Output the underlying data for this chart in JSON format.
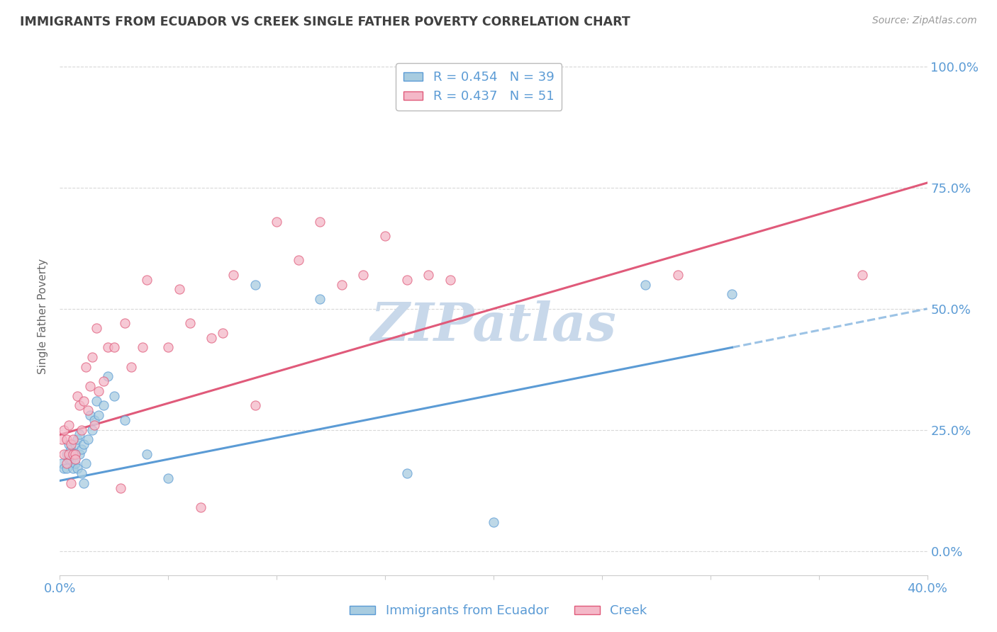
{
  "title": "IMMIGRANTS FROM ECUADOR VS CREEK SINGLE FATHER POVERTY CORRELATION CHART",
  "source": "Source: ZipAtlas.com",
  "ylabel": "Single Father Poverty",
  "ytick_labels": [
    "0.0%",
    "25.0%",
    "50.0%",
    "75.0%",
    "100.0%"
  ],
  "ytick_values": [
    0.0,
    0.25,
    0.5,
    0.75,
    1.0
  ],
  "legend1_label": "Immigrants from Ecuador",
  "legend2_label": "Creek",
  "R1": 0.454,
  "N1": 39,
  "R2": 0.437,
  "N2": 51,
  "blue_color": "#a8cce0",
  "pink_color": "#f4b8c8",
  "blue_line_color": "#5b9bd5",
  "pink_line_color": "#e05a7a",
  "watermark_color": "#c8d8ea",
  "title_color": "#404040",
  "axis_label_color": "#5b9bd5",
  "grid_color": "#d8d8d8",
  "xlim": [
    0.0,
    0.4
  ],
  "ylim": [
    -0.05,
    1.02
  ],
  "blue_line_x0": 0.0,
  "blue_line_y0": 0.145,
  "blue_line_x1": 0.4,
  "blue_line_y1": 0.5,
  "pink_line_x0": 0.0,
  "pink_line_y0": 0.24,
  "pink_line_x1": 0.4,
  "pink_line_y1": 0.76,
  "ecuador_x": [
    0.001,
    0.002,
    0.003,
    0.003,
    0.004,
    0.004,
    0.005,
    0.005,
    0.006,
    0.006,
    0.007,
    0.007,
    0.008,
    0.008,
    0.009,
    0.009,
    0.01,
    0.01,
    0.011,
    0.011,
    0.012,
    0.013,
    0.014,
    0.015,
    0.016,
    0.017,
    0.018,
    0.02,
    0.022,
    0.025,
    0.03,
    0.04,
    0.05,
    0.09,
    0.12,
    0.16,
    0.2,
    0.27,
    0.31
  ],
  "ecuador_y": [
    0.18,
    0.17,
    0.2,
    0.17,
    0.19,
    0.22,
    0.19,
    0.21,
    0.17,
    0.2,
    0.22,
    0.18,
    0.23,
    0.17,
    0.24,
    0.2,
    0.21,
    0.16,
    0.22,
    0.14,
    0.18,
    0.23,
    0.28,
    0.25,
    0.27,
    0.31,
    0.28,
    0.3,
    0.36,
    0.32,
    0.27,
    0.2,
    0.15,
    0.55,
    0.52,
    0.16,
    0.06,
    0.55,
    0.53
  ],
  "creek_x": [
    0.001,
    0.002,
    0.002,
    0.003,
    0.003,
    0.004,
    0.004,
    0.005,
    0.005,
    0.006,
    0.006,
    0.007,
    0.007,
    0.008,
    0.009,
    0.01,
    0.011,
    0.012,
    0.013,
    0.014,
    0.015,
    0.016,
    0.017,
    0.018,
    0.02,
    0.022,
    0.025,
    0.028,
    0.03,
    0.033,
    0.038,
    0.04,
    0.05,
    0.055,
    0.06,
    0.065,
    0.07,
    0.075,
    0.08,
    0.09,
    0.1,
    0.11,
    0.12,
    0.13,
    0.14,
    0.15,
    0.16,
    0.17,
    0.18,
    0.285,
    0.37
  ],
  "creek_y": [
    0.23,
    0.25,
    0.2,
    0.23,
    0.18,
    0.26,
    0.2,
    0.22,
    0.14,
    0.2,
    0.23,
    0.2,
    0.19,
    0.32,
    0.3,
    0.25,
    0.31,
    0.38,
    0.29,
    0.34,
    0.4,
    0.26,
    0.46,
    0.33,
    0.35,
    0.42,
    0.42,
    0.13,
    0.47,
    0.38,
    0.42,
    0.56,
    0.42,
    0.54,
    0.47,
    0.09,
    0.44,
    0.45,
    0.57,
    0.3,
    0.68,
    0.6,
    0.68,
    0.55,
    0.57,
    0.65,
    0.56,
    0.57,
    0.56,
    0.57,
    0.57
  ]
}
